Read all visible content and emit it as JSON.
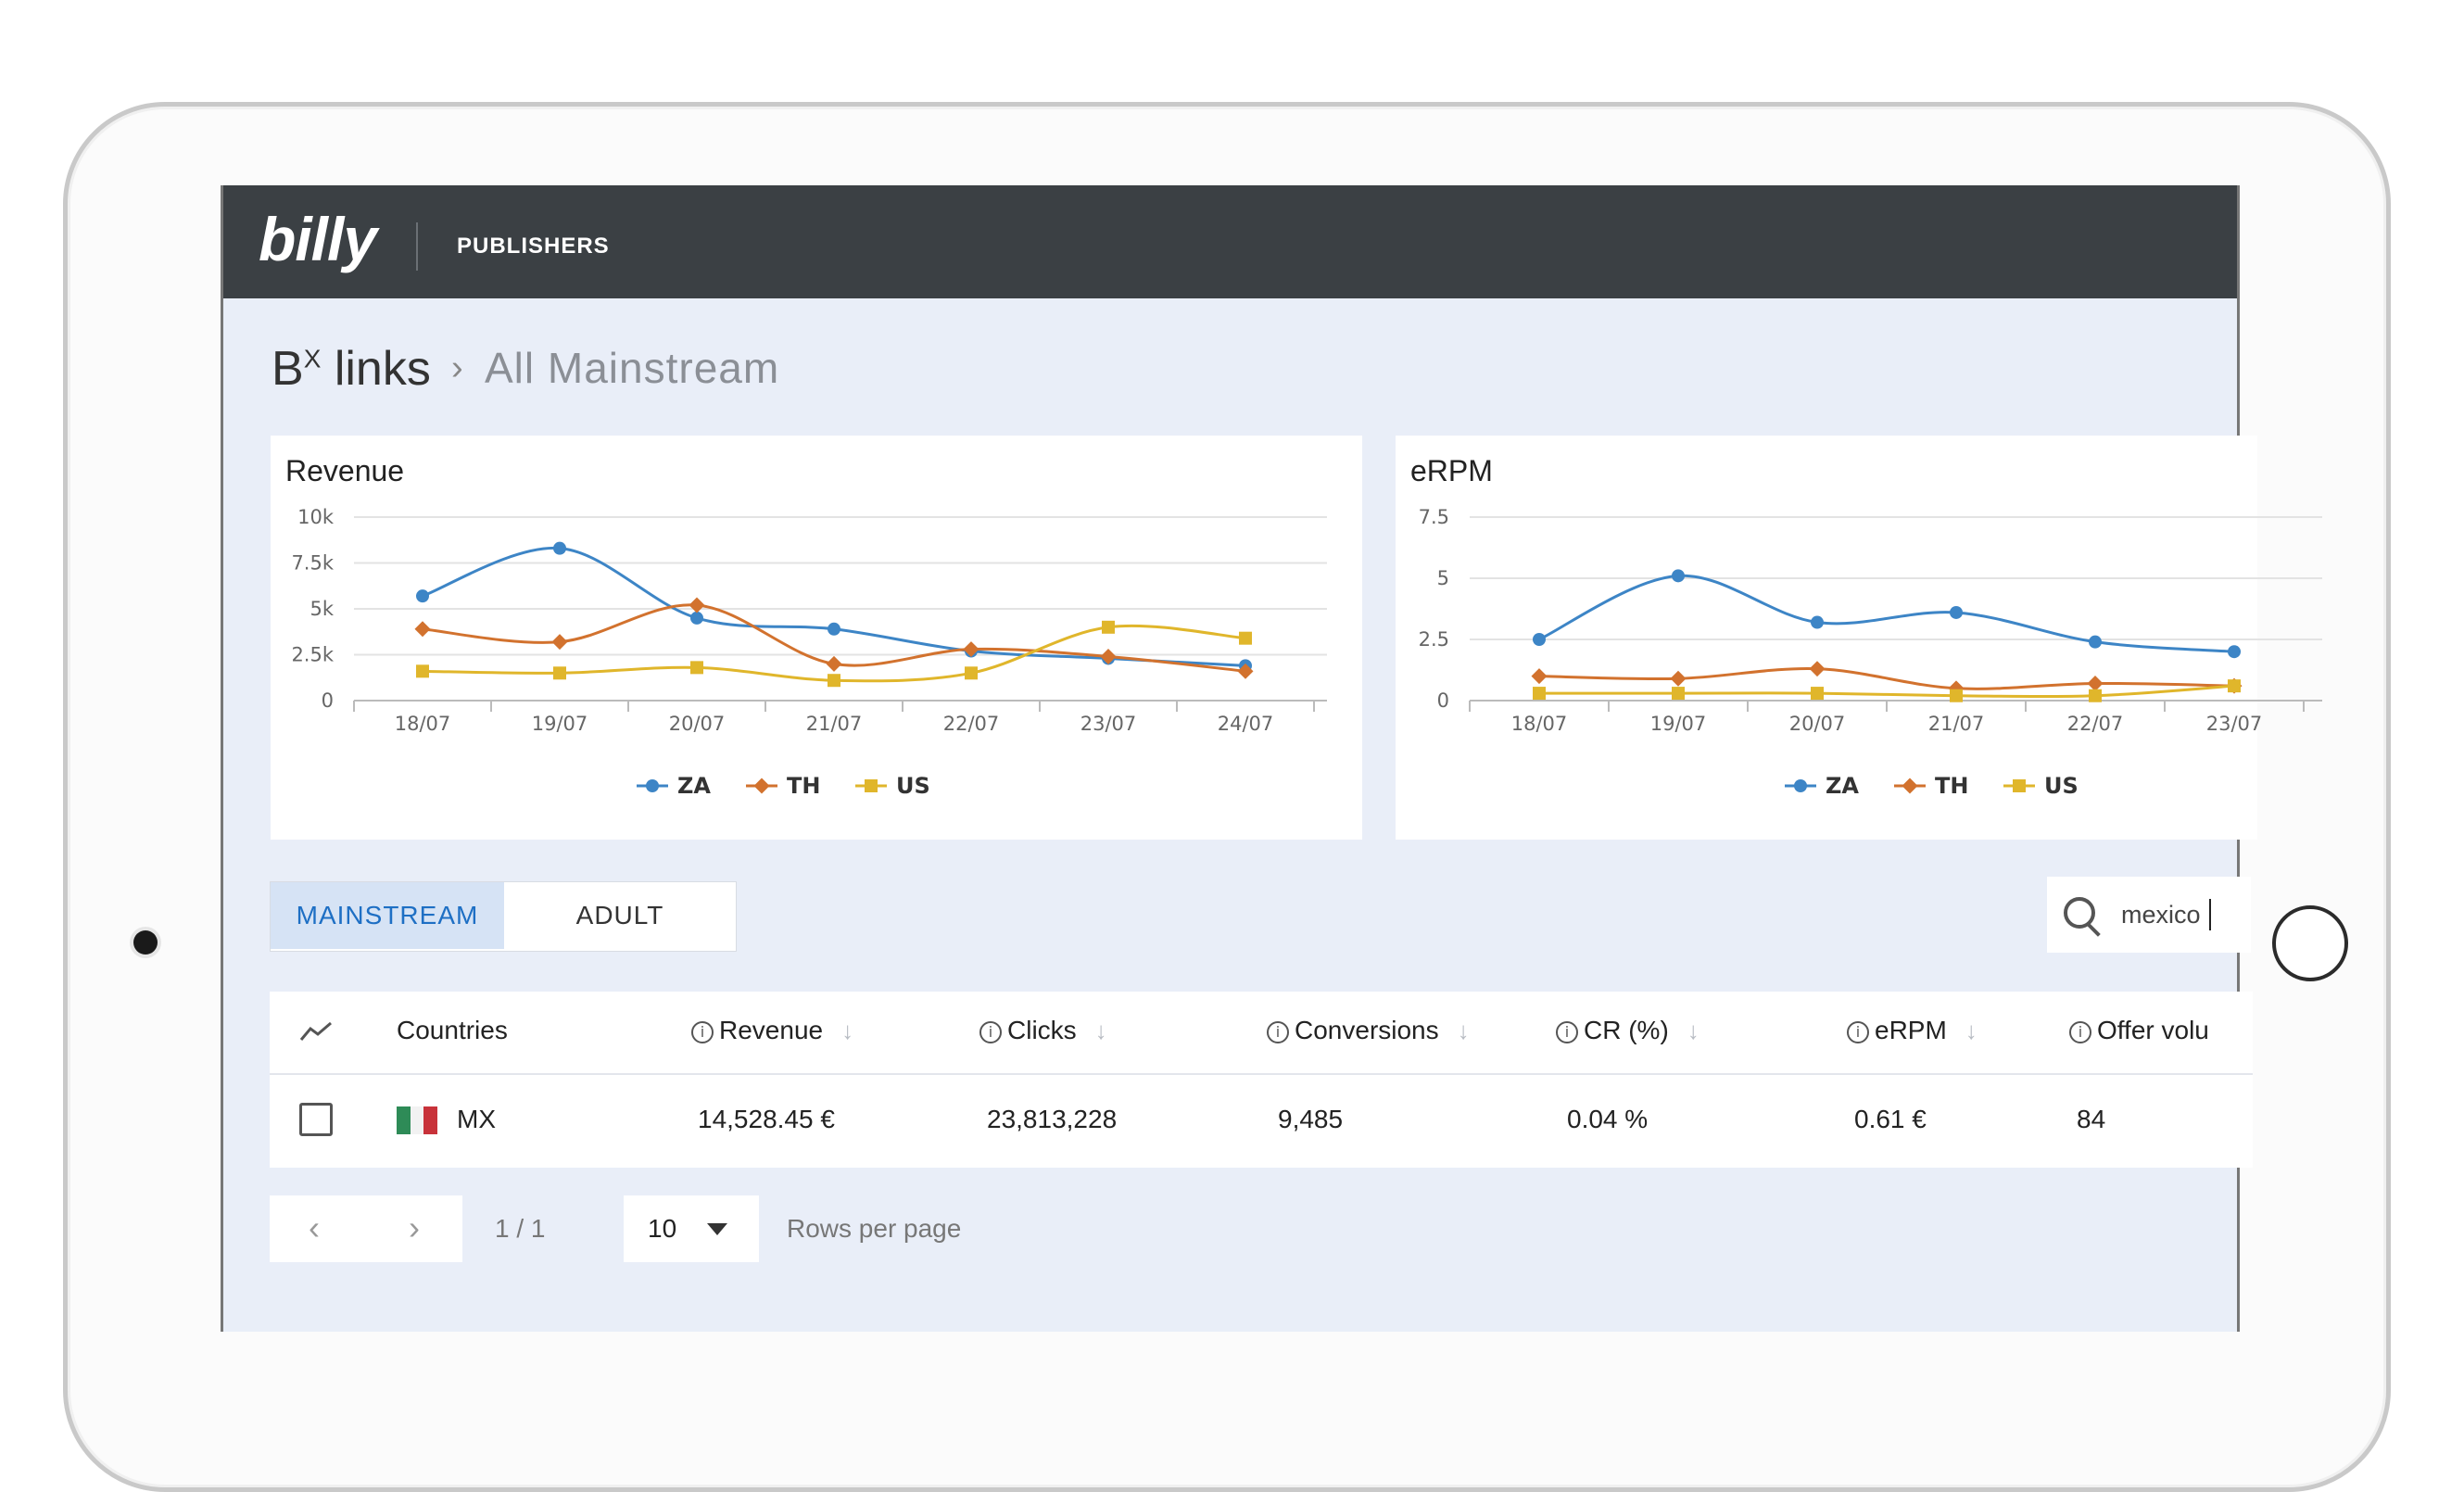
{
  "app": {
    "logo": "billy",
    "nav_item": "PUBLISHERS"
  },
  "breadcrumb": {
    "root_base": "B",
    "root_sup": "X",
    "root_tail": " links",
    "separator": "›",
    "current": "All Mainstream"
  },
  "colors": {
    "ZA": "#3d85c6",
    "TH": "#d2722e",
    "US": "#e0b62b",
    "topbar": "#3b4044",
    "accent": "#1e6fc4"
  },
  "charts": [
    {
      "title": "Revenue",
      "chart_data": {
        "type": "line",
        "categories": [
          "18/07",
          "19/07",
          "20/07",
          "21/07",
          "22/07",
          "23/07",
          "24/07"
        ],
        "yticks": [
          "0",
          "2.5k",
          "5k",
          "7.5k",
          "10k"
        ],
        "ylim": [
          0,
          10000
        ],
        "series": [
          {
            "name": "ZA",
            "values": [
              5700,
              8300,
              4500,
              3900,
              2700,
              2300,
              1900
            ]
          },
          {
            "name": "TH",
            "values": [
              3900,
              3200,
              5200,
              2000,
              2800,
              2400,
              1600
            ]
          },
          {
            "name": "US",
            "values": [
              1600,
              1500,
              1800,
              1100,
              1500,
              4000,
              3400
            ]
          }
        ],
        "legend": "bottom-center"
      }
    },
    {
      "title": "eRPM",
      "chart_data": {
        "type": "line",
        "categories": [
          "18/07",
          "19/07",
          "20/07",
          "21/07",
          "22/07",
          "23/07"
        ],
        "yticks": [
          "0",
          "2.5",
          "5",
          "7.5"
        ],
        "ylim": [
          0,
          7.5
        ],
        "series": [
          {
            "name": "ZA",
            "values": [
              2.5,
              5.1,
              3.2,
              3.6,
              2.4,
              2.0
            ]
          },
          {
            "name": "TH",
            "values": [
              1.0,
              0.9,
              1.3,
              0.5,
              0.7,
              0.6
            ]
          },
          {
            "name": "US",
            "values": [
              0.3,
              0.3,
              0.3,
              0.2,
              0.2,
              0.6
            ]
          }
        ],
        "legend": "bottom-center"
      }
    }
  ],
  "tabs": [
    {
      "label": "MAINSTREAM",
      "active": true
    },
    {
      "label": "ADULT",
      "active": false
    }
  ],
  "search": {
    "value": "mexico"
  },
  "table": {
    "columns": [
      "Countries",
      "Revenue",
      "Clicks",
      "Conversions",
      "CR (%)",
      "eRPM",
      "Offer volu"
    ],
    "rows": [
      {
        "country": "MX",
        "revenue": "14,528.45 €",
        "clicks": "23,813,228",
        "conversions": "9,485",
        "cr": "0.04 %",
        "erpm": "0.61 €",
        "offer_volume": "84"
      }
    ]
  },
  "pagination": {
    "prev": "‹",
    "next": "›",
    "info": "1 / 1",
    "rows_value": "10",
    "rows_label": "Rows per page"
  }
}
